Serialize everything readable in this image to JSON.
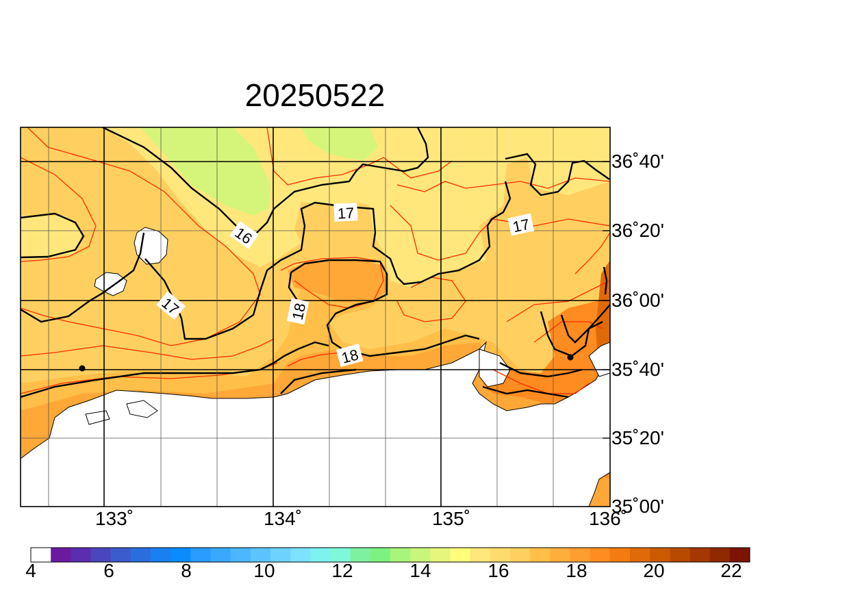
{
  "title": "20250522",
  "map": {
    "lat_labels": [
      "36˚40'",
      "36˚20'",
      "36˚00'",
      "35˚40'",
      "35˚20'",
      "35˚00'"
    ],
    "lon_labels": [
      "133˚",
      "134˚",
      "135˚",
      "136˚"
    ],
    "contour_labels": [
      "16",
      "17",
      "17",
      "17",
      "18",
      "18"
    ],
    "contour_interval_black": 1,
    "colors": {
      "land": "#ffffff",
      "coast": "#000000",
      "contour_major": "#000000",
      "contour_minor": "#ff2a00"
    }
  },
  "colorbar": {
    "labels": [
      "4",
      "6",
      "8",
      "10",
      "12",
      "14",
      "16",
      "18",
      "20",
      "22"
    ],
    "colors": [
      "#ffffff",
      "#6b1aa0",
      "#5a2eae",
      "#4a46bc",
      "#3a5ccc",
      "#2a6ede",
      "#1a7ff0",
      "#0a8cff",
      "#2a9cff",
      "#3ba8ff",
      "#4cb6ff",
      "#5ec4ff",
      "#6ed2ff",
      "#7ce2ff",
      "#7ef2f0",
      "#7ef8d8",
      "#7ef0a0",
      "#7ef280",
      "#a8f57c",
      "#c8f57c",
      "#e6f57c",
      "#ffff7c",
      "#ffe77c",
      "#ffdb6e",
      "#ffd060",
      "#ffbf48",
      "#ffae3c",
      "#ff9e30",
      "#ff8c20",
      "#f57b10",
      "#e06a08",
      "#cc5a00",
      "#b84a00",
      "#a43800",
      "#902800",
      "#7c1400"
    ]
  }
}
